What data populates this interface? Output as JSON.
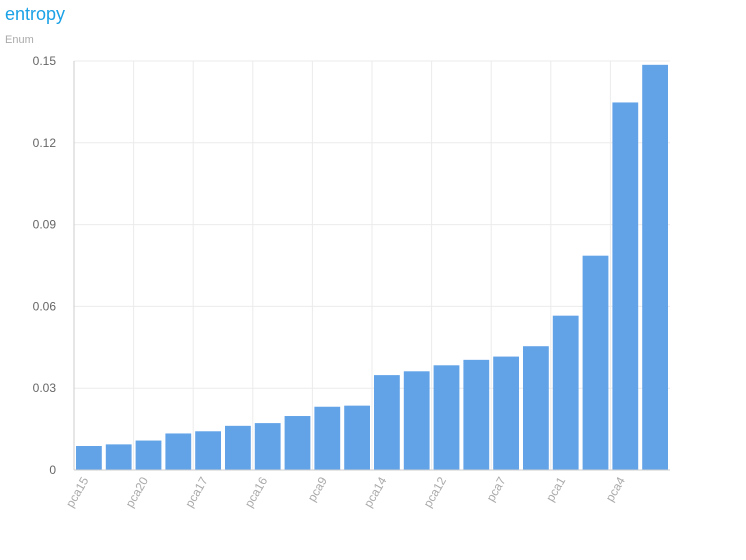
{
  "header": {
    "title": "entropy",
    "subtitle": "Enum"
  },
  "colors": {
    "title": "#1aa1e6",
    "subtitle": "#aaaaaa",
    "bar": "#62a3e8",
    "grid": "#ebebeb",
    "axis": "#cccccc"
  },
  "chart_data": {
    "type": "bar",
    "title": "entropy",
    "subtitle": "Enum",
    "xlabel": "",
    "ylabel": "",
    "ylim": [
      0,
      0.15
    ],
    "yticks": [
      0,
      0.03,
      0.06,
      0.09,
      0.12,
      0.15
    ],
    "ytick_labels": [
      "0",
      "0.03",
      "0.06",
      "0.09",
      "0.12",
      "0.15"
    ],
    "grid": true,
    "bar_count": 20,
    "categories": [
      "pca15",
      "",
      "pca20",
      "",
      "pca17",
      "",
      "pca16",
      "",
      "pca9",
      "",
      "pca14",
      "",
      "pca12",
      "",
      "pca7",
      "",
      "pca1",
      "",
      "pca4",
      ""
    ],
    "values": [
      0.0088,
      0.0094,
      0.0108,
      0.0134,
      0.0142,
      0.0162,
      0.0172,
      0.0198,
      0.0232,
      0.0236,
      0.0348,
      0.0362,
      0.0384,
      0.0404,
      0.0416,
      0.0454,
      0.0566,
      0.0786,
      0.1348,
      0.1486
    ],
    "x_tick_labels": [
      "pca15",
      "pca20",
      "pca17",
      "pca16",
      "pca9",
      "pca14",
      "pca12",
      "pca7",
      "pca1",
      "pca4"
    ]
  }
}
